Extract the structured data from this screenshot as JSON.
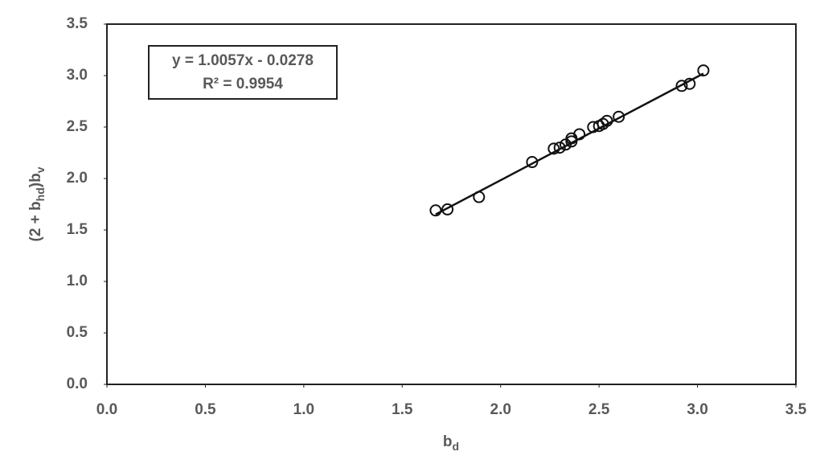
{
  "chart_data": {
    "type": "scatter",
    "xlabel": [
      "b",
      "d"
    ],
    "ylabel": [
      "(2 + b",
      "hd",
      ")b",
      "v"
    ],
    "series": [
      {
        "color": "#111111",
        "x": [
          1.67,
          1.73,
          1.89,
          2.16,
          2.27,
          2.3,
          2.33,
          2.36,
          2.36,
          2.4,
          2.47,
          2.5,
          2.52,
          2.54,
          2.6,
          2.92,
          2.96,
          3.03
        ],
        "values": [
          1.69,
          1.7,
          1.82,
          2.16,
          2.29,
          2.3,
          2.33,
          2.36,
          2.39,
          2.43,
          2.5,
          2.51,
          2.53,
          2.56,
          2.6,
          2.9,
          2.92,
          3.05
        ]
      }
    ],
    "trendline": {
      "equation": "y = 1.0057x - 0.0278",
      "slope": 1.0057,
      "intercept": -0.0278,
      "r2": "R² = 0.9954"
    },
    "xlim": [
      0,
      3.5
    ],
    "xticks": [
      {
        "value": 0,
        "label": "0.0"
      },
      0.5,
      {
        "value": 1,
        "label": "1.0"
      },
      1.5,
      {
        "value": 2,
        "label": "2.0"
      },
      2.5,
      {
        "value": 3,
        "label": "3.0"
      },
      3.5
    ],
    "ylim": [
      0,
      3.5
    ],
    "yticks": [
      {
        "value": 0,
        "label": "0.0"
      },
      0.5,
      {
        "value": 1,
        "label": "1.0"
      },
      1.5,
      {
        "value": 2,
        "label": "2.0"
      },
      2.5,
      {
        "value": 3,
        "label": "3.0"
      },
      3.5
    ]
  }
}
